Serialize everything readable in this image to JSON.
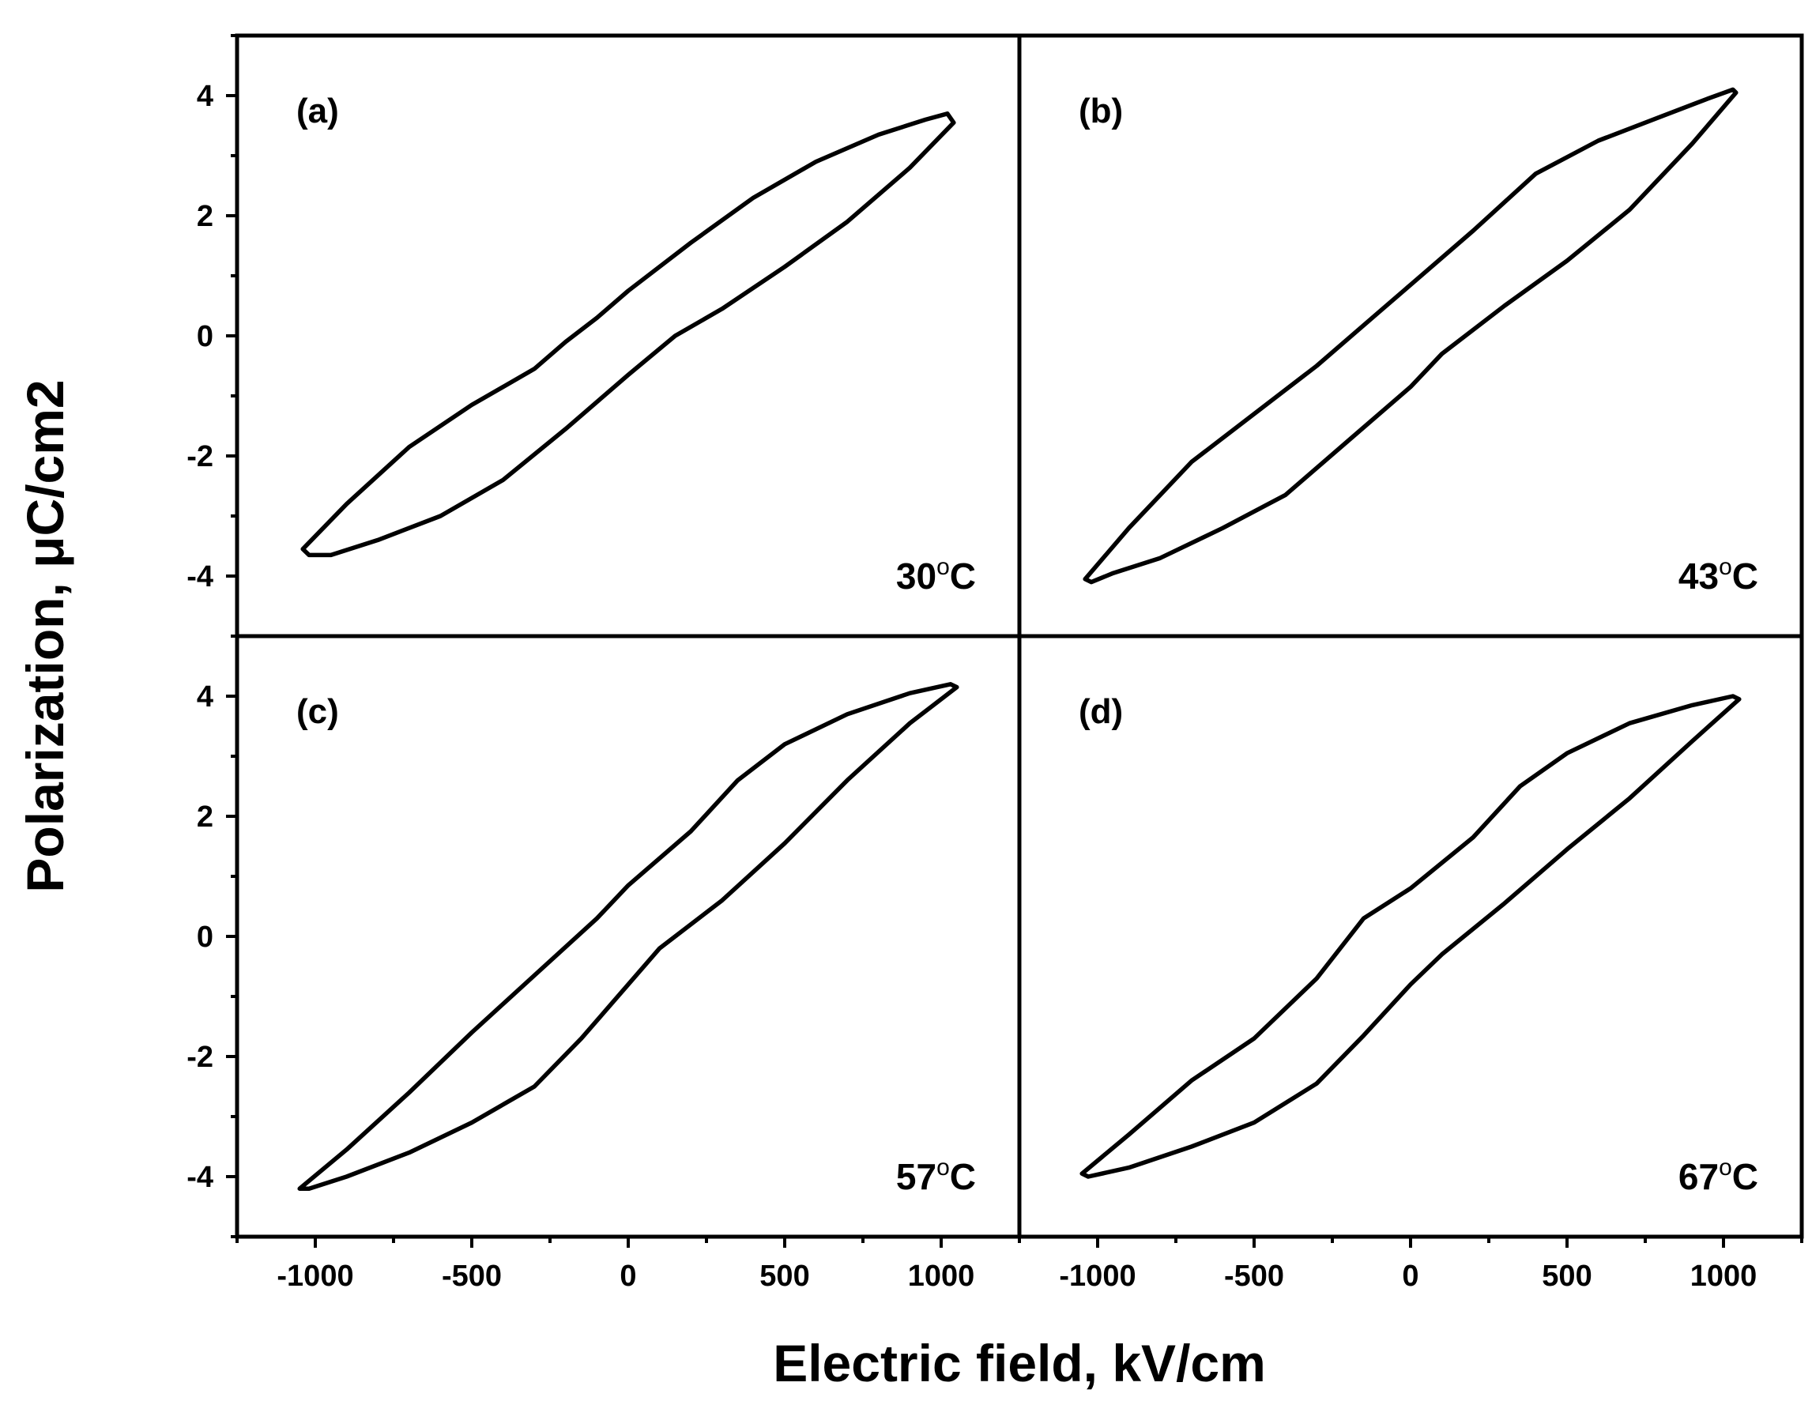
{
  "chart_data": {
    "type": "line",
    "layout": "2x2 shared axes",
    "xlabel": "Electric field, kV/cm",
    "ylabel": "Polarization, μC/cm2",
    "x_range_left": [
      -1250,
      1250
    ],
    "x_range_right": [
      -1250,
      1250
    ],
    "ylim_top": [
      -5,
      5
    ],
    "ylim_bottom": [
      -5,
      5
    ],
    "x_ticks": [
      -1000,
      -500,
      0,
      500,
      1000
    ],
    "x_tick_labels": [
      "-1000",
      "-500",
      "0",
      "500",
      "1000"
    ],
    "y_ticks": [
      -4,
      -2,
      0,
      2,
      4
    ],
    "y_tick_labels": [
      "-4",
      "-2",
      "0",
      "2",
      "4"
    ],
    "grid": false,
    "panels": [
      {
        "tag": "(a)",
        "temperature": "30°C",
        "temp_number": "30",
        "temp_unit": "C",
        "upper_branch": [
          [
            -1040,
            -3.55
          ],
          [
            -900,
            -2.8
          ],
          [
            -700,
            -1.85
          ],
          [
            -500,
            -1.15
          ],
          [
            -300,
            -0.55
          ],
          [
            -200,
            -0.1
          ],
          [
            -100,
            0.3
          ],
          [
            0,
            0.75
          ],
          [
            200,
            1.55
          ],
          [
            400,
            2.3
          ],
          [
            600,
            2.9
          ],
          [
            800,
            3.35
          ],
          [
            950,
            3.6
          ],
          [
            1020,
            3.7
          ],
          [
            1040,
            3.55
          ]
        ],
        "lower_branch": [
          [
            1040,
            3.55
          ],
          [
            900,
            2.8
          ],
          [
            700,
            1.9
          ],
          [
            500,
            1.15
          ],
          [
            300,
            0.45
          ],
          [
            150,
            0.0
          ],
          [
            0,
            -0.65
          ],
          [
            -200,
            -1.55
          ],
          [
            -400,
            -2.4
          ],
          [
            -600,
            -3.0
          ],
          [
            -800,
            -3.4
          ],
          [
            -950,
            -3.65
          ],
          [
            -1020,
            -3.65
          ],
          [
            -1040,
            -3.55
          ]
        ]
      },
      {
        "tag": "(b)",
        "temperature": "43°C",
        "temp_number": "43",
        "temp_unit": "C",
        "upper_branch": [
          [
            -1040,
            -4.05
          ],
          [
            -900,
            -3.2
          ],
          [
            -700,
            -2.1
          ],
          [
            -500,
            -1.3
          ],
          [
            -300,
            -0.5
          ],
          [
            -100,
            0.4
          ],
          [
            0,
            0.85
          ],
          [
            200,
            1.75
          ],
          [
            400,
            2.7
          ],
          [
            600,
            3.25
          ],
          [
            800,
            3.65
          ],
          [
            950,
            3.95
          ],
          [
            1030,
            4.1
          ],
          [
            1040,
            4.05
          ]
        ],
        "lower_branch": [
          [
            1040,
            4.05
          ],
          [
            900,
            3.2
          ],
          [
            700,
            2.1
          ],
          [
            500,
            1.25
          ],
          [
            300,
            0.5
          ],
          [
            100,
            -0.3
          ],
          [
            0,
            -0.85
          ],
          [
            -200,
            -1.75
          ],
          [
            -400,
            -2.65
          ],
          [
            -600,
            -3.2
          ],
          [
            -800,
            -3.7
          ],
          [
            -950,
            -3.95
          ],
          [
            -1020,
            -4.1
          ],
          [
            -1040,
            -4.05
          ]
        ]
      },
      {
        "tag": "(c)",
        "temperature": "57°C",
        "temp_number": "57",
        "temp_unit": "C",
        "upper_branch": [
          [
            -1050,
            -4.2
          ],
          [
            -900,
            -3.55
          ],
          [
            -700,
            -2.6
          ],
          [
            -500,
            -1.6
          ],
          [
            -300,
            -0.65
          ],
          [
            -100,
            0.3
          ],
          [
            0,
            0.85
          ],
          [
            200,
            1.75
          ],
          [
            350,
            2.6
          ],
          [
            500,
            3.2
          ],
          [
            700,
            3.7
          ],
          [
            900,
            4.05
          ],
          [
            1030,
            4.2
          ],
          [
            1050,
            4.15
          ]
        ],
        "lower_branch": [
          [
            1050,
            4.15
          ],
          [
            900,
            3.55
          ],
          [
            700,
            2.6
          ],
          [
            500,
            1.55
          ],
          [
            300,
            0.6
          ],
          [
            100,
            -0.2
          ],
          [
            0,
            -0.8
          ],
          [
            -150,
            -1.7
          ],
          [
            -300,
            -2.5
          ],
          [
            -500,
            -3.1
          ],
          [
            -700,
            -3.6
          ],
          [
            -900,
            -4.0
          ],
          [
            -1020,
            -4.2
          ],
          [
            -1050,
            -4.2
          ]
        ]
      },
      {
        "tag": "(d)",
        "temperature": "67°C",
        "temp_number": "67",
        "temp_unit": "C",
        "upper_branch": [
          [
            -1050,
            -3.95
          ],
          [
            -900,
            -3.3
          ],
          [
            -700,
            -2.4
          ],
          [
            -500,
            -1.7
          ],
          [
            -300,
            -0.7
          ],
          [
            -150,
            0.3
          ],
          [
            0,
            0.8
          ],
          [
            200,
            1.65
          ],
          [
            350,
            2.5
          ],
          [
            500,
            3.05
          ],
          [
            700,
            3.55
          ],
          [
            900,
            3.85
          ],
          [
            1030,
            4.0
          ],
          [
            1050,
            3.95
          ]
        ],
        "lower_branch": [
          [
            1050,
            3.95
          ],
          [
            900,
            3.25
          ],
          [
            700,
            2.3
          ],
          [
            500,
            1.45
          ],
          [
            300,
            0.55
          ],
          [
            100,
            -0.3
          ],
          [
            0,
            -0.8
          ],
          [
            -150,
            -1.65
          ],
          [
            -300,
            -2.45
          ],
          [
            -500,
            -3.1
          ],
          [
            -700,
            -3.5
          ],
          [
            -900,
            -3.85
          ],
          [
            -1030,
            -4.0
          ],
          [
            -1050,
            -3.95
          ]
        ]
      }
    ]
  }
}
